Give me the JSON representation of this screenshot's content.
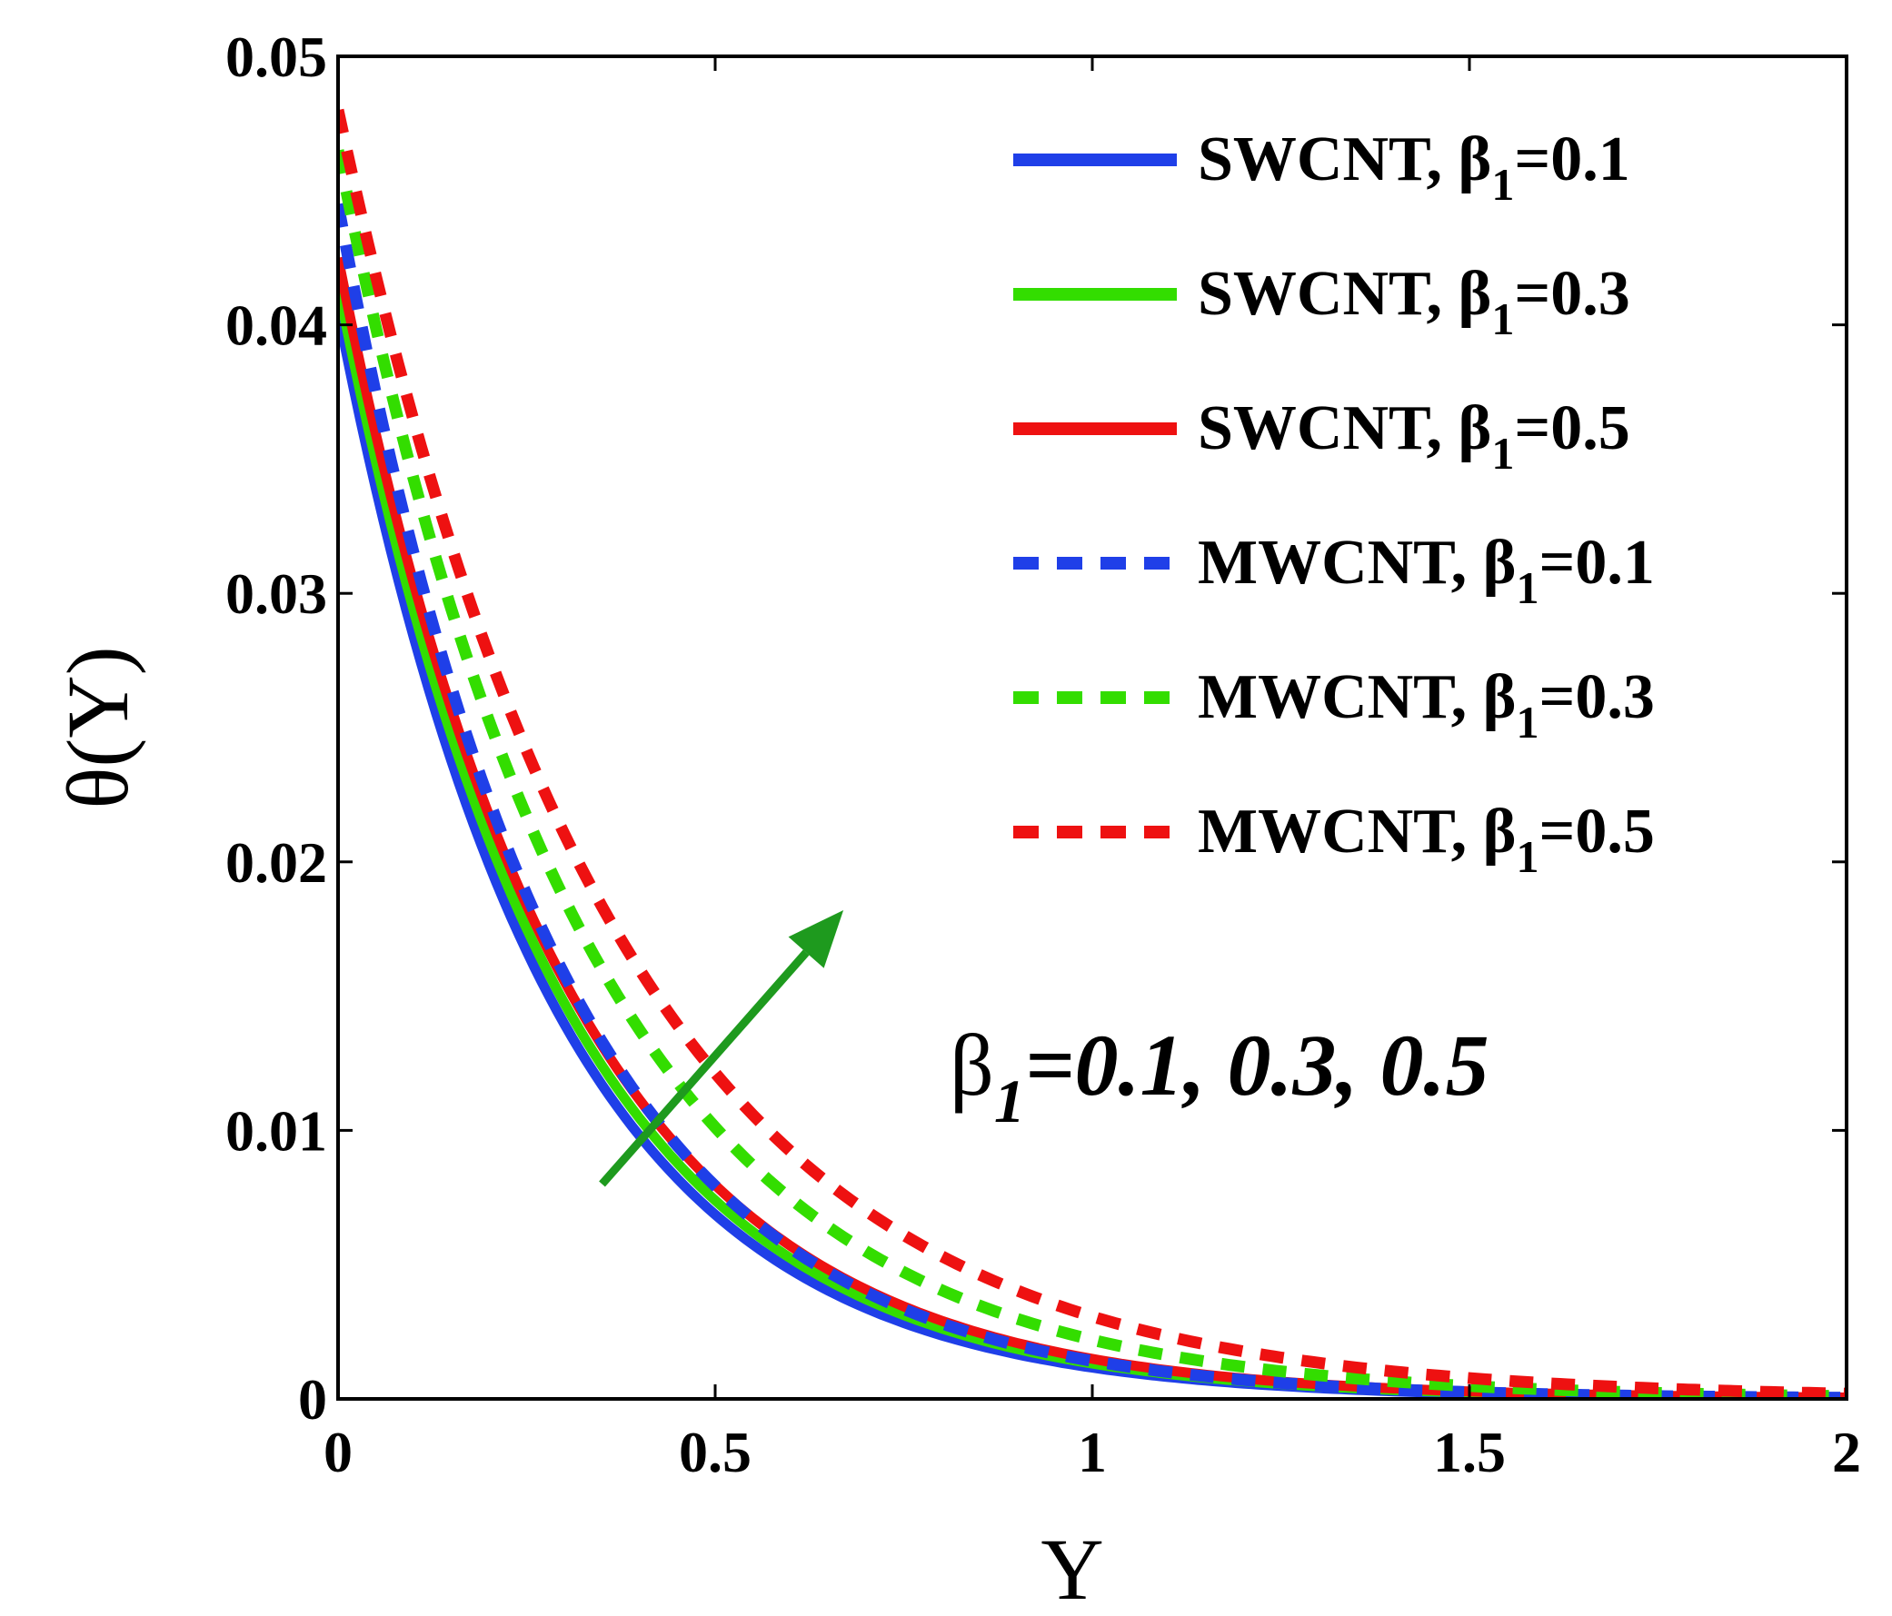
{
  "chart_data": {
    "type": "line",
    "xlabel": "Υ",
    "ylabel": "θ(Υ)",
    "xlim": [
      0,
      2
    ],
    "ylim": [
      0,
      0.05
    ],
    "x_ticks": [
      0,
      0.5,
      1,
      1.5,
      2
    ],
    "x_tick_labels": [
      "0",
      "0.5",
      "1",
      "1.5",
      "2"
    ],
    "y_ticks": [
      0,
      0.01,
      0.02,
      0.03,
      0.04,
      0.05
    ],
    "y_tick_labels": [
      "0",
      "0.01",
      "0.02",
      "0.03",
      "0.04",
      "0.05"
    ],
    "grid": false,
    "legend_position": "top-right",
    "series": [
      {
        "label_main": "SWCNT, β",
        "label_sub": "1",
        "label_tail": "=0.1",
        "color": "#1f3fe8",
        "style": "solid",
        "y0": 0.0405,
        "decay": 3.55
      },
      {
        "label_main": "SWCNT, β",
        "label_sub": "1",
        "label_tail": "=0.3",
        "color": "#33dd00",
        "style": "solid",
        "y0": 0.0415,
        "decay": 3.45
      },
      {
        "label_main": "SWCNT, β",
        "label_sub": "1",
        "label_tail": "=0.5",
        "color": "#ee1111",
        "style": "solid",
        "y0": 0.0425,
        "decay": 3.35
      },
      {
        "label_main": "MWCNT, β",
        "label_sub": "1",
        "label_tail": "=0.1",
        "color": "#1f3fe8",
        "style": "dashed",
        "y0": 0.0445,
        "decay": 3.45
      },
      {
        "label_main": "MWCNT, β",
        "label_sub": "1",
        "label_tail": "=0.3",
        "color": "#33dd00",
        "style": "dashed",
        "y0": 0.0465,
        "decay": 3.05
      },
      {
        "label_main": "MWCNT, β",
        "label_sub": "1",
        "label_tail": "=0.5",
        "color": "#ee1111",
        "style": "dashed",
        "y0": 0.048,
        "decay": 2.75
      }
    ],
    "annotation": {
      "symbol": "β",
      "sub": "1",
      "text": "=0.1, 0.3, 0.5",
      "arrow_color": "#1e9a1e",
      "arrow_from": [
        0.35,
        0.008
      ],
      "arrow_to": [
        0.67,
        0.0182
      ]
    }
  }
}
